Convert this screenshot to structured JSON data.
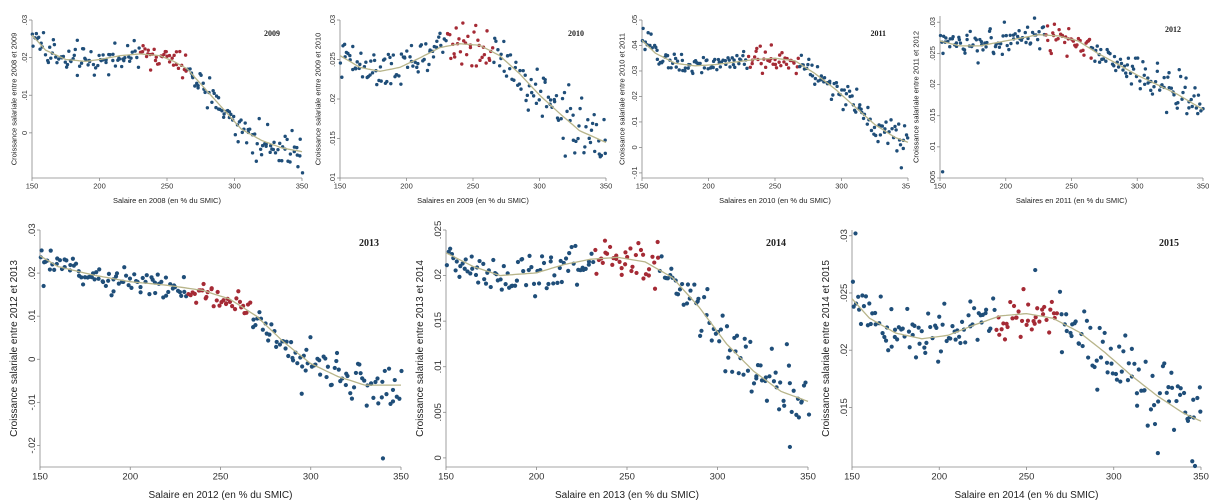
{
  "colors": {
    "blue_points": "#1f4e79",
    "red_points": "#a52a35",
    "fit_line": "#b8b58a"
  },
  "chart_data": [
    {
      "type": "scatter",
      "year_label": "2009",
      "ylabel": "Croissance salariale entre 2008 et 2009",
      "xlabel": "Salaire en 2008  (en % du SMIC)",
      "xlim": [
        150,
        350
      ],
      "ylim": [
        -0.012,
        0.03
      ],
      "xticks": [
        150,
        200,
        250,
        300,
        350
      ],
      "yticks": [
        0,
        0.01,
        0.02,
        0.03
      ],
      "ytick_labels": [
        "0",
        ".01",
        ".02",
        ".03"
      ],
      "red_range": [
        230,
        265
      ],
      "trend": [
        [
          150,
          0.026
        ],
        [
          160,
          0.022
        ],
        [
          175,
          0.0195
        ],
        [
          190,
          0.019
        ],
        [
          200,
          0.0195
        ],
        [
          215,
          0.0205
        ],
        [
          230,
          0.021
        ],
        [
          245,
          0.0205
        ],
        [
          255,
          0.019
        ],
        [
          265,
          0.017
        ],
        [
          275,
          0.013
        ],
        [
          290,
          0.007
        ],
        [
          305,
          0.001
        ],
        [
          320,
          -0.002
        ],
        [
          335,
          -0.004
        ],
        [
          350,
          -0.005
        ]
      ],
      "noise": 0.0018,
      "outliers": [
        [
          347,
          -0.009
        ]
      ]
    },
    {
      "type": "scatter",
      "year_label": "2010",
      "ylabel": "Croissance salariale entre 2009 et 2010",
      "xlabel": "Salaires en 2009  (en % du SMIC)",
      "xlim": [
        150,
        350
      ],
      "ylim": [
        0.01,
        0.03
      ],
      "xticks": [
        150,
        200,
        250,
        300,
        350
      ],
      "yticks": [
        0.01,
        0.015,
        0.02,
        0.025,
        0.03
      ],
      "ytick_labels": [
        ".01",
        ".015",
        ".02",
        ".025",
        ".03"
      ],
      "red_range": [
        230,
        265
      ],
      "trend": [
        [
          150,
          0.0255
        ],
        [
          165,
          0.024
        ],
        [
          180,
          0.0235
        ],
        [
          195,
          0.024
        ],
        [
          210,
          0.0252
        ],
        [
          225,
          0.0265
        ],
        [
          240,
          0.027
        ],
        [
          255,
          0.0268
        ],
        [
          270,
          0.0255
        ],
        [
          285,
          0.0232
        ],
        [
          300,
          0.0205
        ],
        [
          315,
          0.0182
        ],
        [
          330,
          0.016
        ],
        [
          350,
          0.0145
        ]
      ],
      "noise": 0.0012,
      "outliers": []
    },
    {
      "type": "scatter",
      "year_label": "2011",
      "ylabel": "Croissance salariale entre 2010 et 2011",
      "xlabel": "Salaires en 2010  (en % du SMIC)",
      "xlim": [
        150,
        350
      ],
      "ylim": [
        -0.012,
        0.05
      ],
      "xticks": [
        150,
        200,
        250,
        300,
        350
      ],
      "yticks": [
        -0.01,
        0.0,
        0.01,
        0.02,
        0.03,
        0.04,
        0.05
      ],
      "ytick_labels": [
        "-.01",
        "0",
        ".01",
        ".02",
        ".03",
        ".04",
        ".05"
      ],
      "red_range": [
        230,
        268
      ],
      "trend": [
        [
          150,
          0.042
        ],
        [
          160,
          0.037
        ],
        [
          175,
          0.033
        ],
        [
          190,
          0.032
        ],
        [
          205,
          0.0325
        ],
        [
          220,
          0.0335
        ],
        [
          235,
          0.0345
        ],
        [
          250,
          0.035
        ],
        [
          265,
          0.034
        ],
        [
          280,
          0.029
        ],
        [
          295,
          0.023
        ],
        [
          310,
          0.016
        ],
        [
          325,
          0.009
        ],
        [
          340,
          0.004
        ],
        [
          350,
          0.002
        ]
      ],
      "noise": 0.0022,
      "outliers": [
        [
          345,
          -0.008
        ]
      ]
    },
    {
      "type": "scatter",
      "year_label": "2012",
      "ylabel": "Croissance salariale entre 2011 et 2012",
      "xlabel": "Salaires en 2011  (en % du SMIC)",
      "xlim": [
        150,
        350
      ],
      "ylim": [
        0.005,
        0.031
      ],
      "xticks": [
        150,
        200,
        250,
        300,
        350
      ],
      "yticks": [
        0.005,
        0.01,
        0.015,
        0.02,
        0.025,
        0.03
      ],
      "ytick_labels": [
        ".005",
        ".01",
        ".015",
        ".02",
        ".025",
        ".03"
      ],
      "red_range": [
        230,
        265
      ],
      "trend": [
        [
          150,
          0.027
        ],
        [
          165,
          0.0262
        ],
        [
          180,
          0.0262
        ],
        [
          195,
          0.0268
        ],
        [
          210,
          0.0274
        ],
        [
          225,
          0.028
        ],
        [
          240,
          0.0278
        ],
        [
          255,
          0.027
        ],
        [
          270,
          0.025
        ],
        [
          285,
          0.0233
        ],
        [
          300,
          0.0215
        ],
        [
          315,
          0.02
        ],
        [
          330,
          0.0185
        ],
        [
          350,
          0.016
        ]
      ],
      "noise": 0.0011,
      "outliers": [
        [
          152,
          0.006
        ]
      ]
    },
    {
      "type": "scatter",
      "year_label": "2013",
      "ylabel": "Croissance salariale entre 2012 et 2013",
      "xlabel": "Salaire en 2012 (en % du SMIC)",
      "xlim": [
        150,
        350
      ],
      "ylim": [
        -0.025,
        0.03
      ],
      "xticks": [
        150,
        200,
        250,
        300,
        350
      ],
      "yticks": [
        -0.02,
        -0.01,
        0.0,
        0.01,
        0.02,
        0.03
      ],
      "ytick_labels": [
        "-.02",
        "-.01",
        "0",
        ".01",
        ".02",
        ".03"
      ],
      "red_range": [
        232,
        268
      ],
      "trend": [
        [
          150,
          0.024
        ],
        [
          160,
          0.0215
        ],
        [
          180,
          0.0195
        ],
        [
          200,
          0.018
        ],
        [
          220,
          0.0172
        ],
        [
          240,
          0.016
        ],
        [
          255,
          0.014
        ],
        [
          270,
          0.01
        ],
        [
          285,
          0.004
        ],
        [
          300,
          -0.001
        ],
        [
          315,
          -0.004
        ],
        [
          330,
          -0.006
        ],
        [
          350,
          -0.006
        ]
      ],
      "noise": 0.0016,
      "outliers": [
        [
          152,
          0.017
        ],
        [
          340,
          -0.023
        ],
        [
          295,
          -0.008
        ]
      ]
    },
    {
      "type": "scatter",
      "year_label": "2014",
      "ylabel": "Croissance salariale entre 2013 et 2014",
      "xlabel": "Salaire en 2013 (en % du SMIC)",
      "xlim": [
        150,
        350
      ],
      "ylim": [
        -0.001,
        0.025
      ],
      "xticks": [
        150,
        200,
        250,
        300,
        350
      ],
      "yticks": [
        0,
        0.005,
        0.01,
        0.015,
        0.02,
        0.025
      ],
      "ytick_labels": [
        "0",
        ".005",
        ".01",
        ".015",
        ".02",
        ".025"
      ],
      "red_range": [
        232,
        268
      ],
      "trend": [
        [
          150,
          0.0225
        ],
        [
          165,
          0.021
        ],
        [
          180,
          0.02
        ],
        [
          200,
          0.0203
        ],
        [
          215,
          0.0212
        ],
        [
          230,
          0.0218
        ],
        [
          245,
          0.022
        ],
        [
          260,
          0.0215
        ],
        [
          275,
          0.0198
        ],
        [
          290,
          0.0165
        ],
        [
          305,
          0.0125
        ],
        [
          320,
          0.0095
        ],
        [
          335,
          0.0073
        ],
        [
          350,
          0.0062
        ]
      ],
      "noise": 0.0012,
      "outliers": [
        [
          340,
          0.0012
        ]
      ]
    },
    {
      "type": "scatter",
      "year_label": "2015",
      "ylabel": "Croissance salariale entre 2014 et 2015",
      "xlabel": "Salaire en 2014 (en % du SMIC)",
      "xlim": [
        150,
        350
      ],
      "ylim": [
        0.0098,
        0.0305
      ],
      "xticks": [
        150,
        200,
        250,
        300,
        350
      ],
      "yticks": [
        0.015,
        0.02,
        0.025,
        0.03
      ],
      "ytick_labels": [
        ".015",
        ".02",
        ".025",
        ".03"
      ],
      "red_range": [
        232,
        268
      ],
      "trend": [
        [
          150,
          0.0245
        ],
        [
          160,
          0.0228
        ],
        [
          175,
          0.0215
        ],
        [
          190,
          0.021
        ],
        [
          205,
          0.0213
        ],
        [
          220,
          0.0222
        ],
        [
          235,
          0.023
        ],
        [
          250,
          0.0232
        ],
        [
          265,
          0.0228
        ],
        [
          280,
          0.0216
        ],
        [
          295,
          0.0198
        ],
        [
          310,
          0.0178
        ],
        [
          325,
          0.016
        ],
        [
          340,
          0.0145
        ],
        [
          350,
          0.0138
        ]
      ],
      "noise": 0.0011,
      "outliers": [
        [
          152,
          0.0302
        ],
        [
          255,
          0.027
        ],
        [
          345,
          0.0103
        ]
      ]
    }
  ]
}
